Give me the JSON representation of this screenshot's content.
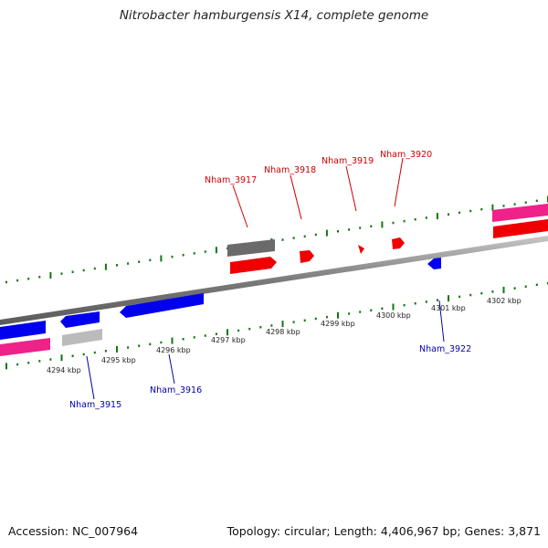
{
  "title": "Nitrobacter hamburgensis X14, complete genome",
  "footer": {
    "accession": "Accession: NC_007964",
    "stats": "Topology: circular; Length: 4,406,967 bp; Genes: 3,871"
  },
  "colors": {
    "forward_label": "#cc0000",
    "reverse_label": "#0000aa",
    "red_gene": "#ee0000",
    "blue_gene": "#0000ee",
    "pink_gene": "#ee2288",
    "gray_gene": "#666666",
    "light_gray_gene": "#bbbbbb",
    "tick_green": "#117711",
    "backbone": "#888888"
  },
  "scale_labels": [
    "4294 kbp",
    "4295 kbp",
    "4296 kbp",
    "4297 kbp",
    "4298 kbp",
    "4299 kbp",
    "4300 kbp",
    "4301 kbp",
    "4302 kbp"
  ],
  "forward_genes": [
    "Nham_3917",
    "Nham_3918",
    "Nham_3919",
    "Nham_3920"
  ],
  "reverse_genes": [
    "Nham_3915",
    "Nham_3916",
    "Nham_3922"
  ]
}
